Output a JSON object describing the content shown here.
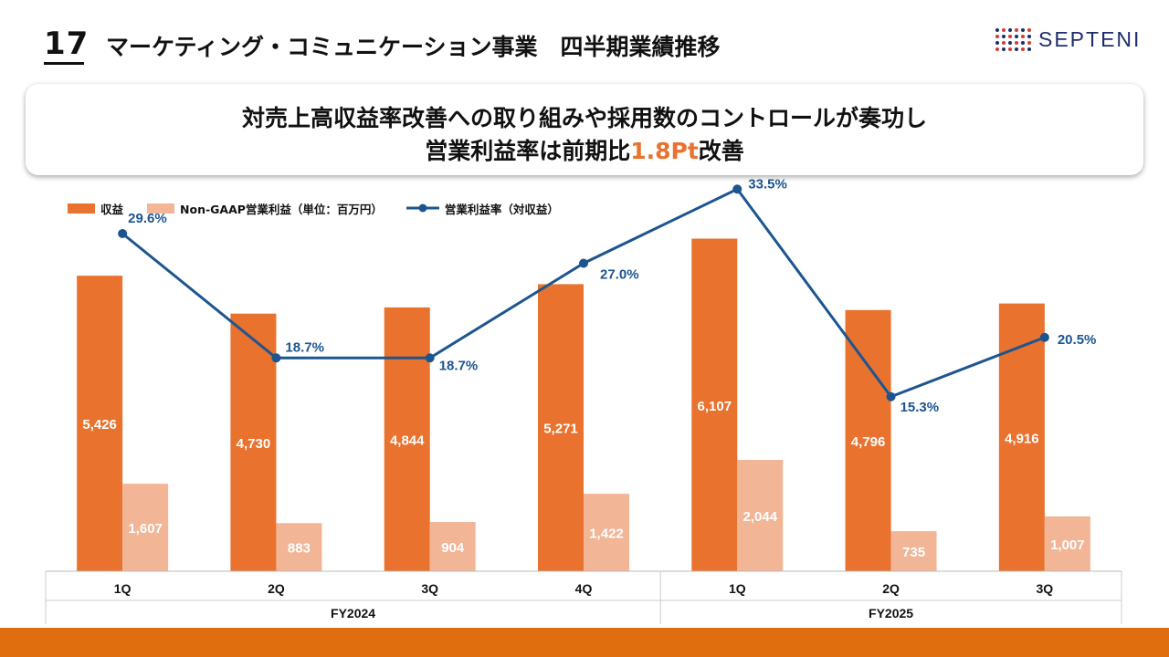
{
  "header": {
    "slide_number": "17",
    "title": "マーケティング・コミュニケーション事業　四半期業績推移",
    "logo_text": "SEPTENI"
  },
  "headline": {
    "line1": "対売上高収益率改善への取り組みや採用数のコントロールが奏功し",
    "line2_prefix": "営業利益率は前期比",
    "line2_highlight": "1.8Pt",
    "line2_suffix": "改善"
  },
  "legend": {
    "revenue": "収益",
    "op_profit": "Non-GAAP営業利益（単位：百万円）",
    "margin": "営業利益率（対収益）"
  },
  "colors": {
    "revenue": "#e8722e",
    "op_profit": "#f2b596",
    "margin": "#1c5590",
    "bottom_bar": "#e06d0e"
  },
  "chart_data": {
    "type": "bar",
    "title": "",
    "xlabel": "",
    "ylabel": "",
    "ylim": [
      0,
      6300
    ],
    "y2lim": [
      0,
      40
    ],
    "categories": [
      "1Q",
      "2Q",
      "3Q",
      "4Q",
      "1Q",
      "2Q",
      "3Q"
    ],
    "groups": [
      {
        "label": "FY2024",
        "count": 4
      },
      {
        "label": "FY2025",
        "count": 3
      }
    ],
    "series": [
      {
        "name": "収益",
        "type": "bar",
        "values": [
          5426,
          4730,
          4844,
          5271,
          6107,
          4796,
          4916
        ],
        "labels": [
          "5,426",
          "4,730",
          "4,844",
          "5,271",
          "6,107",
          "4,796",
          "4,916"
        ]
      },
      {
        "name": "Non-GAAP営業利益",
        "type": "bar",
        "values": [
          1607,
          883,
          904,
          1422,
          2044,
          735,
          1007
        ],
        "labels": [
          "1,607",
          "883",
          "904",
          "1,422",
          "2,044",
          "735",
          "1,007"
        ]
      },
      {
        "name": "営業利益率",
        "type": "line",
        "values": [
          29.6,
          18.7,
          18.7,
          27.0,
          33.5,
          15.3,
          20.5
        ],
        "labels": [
          "29.6%",
          "18.7%",
          "18.7%",
          "27.0%",
          "33.5%",
          "15.3%",
          "20.5%"
        ]
      }
    ]
  }
}
